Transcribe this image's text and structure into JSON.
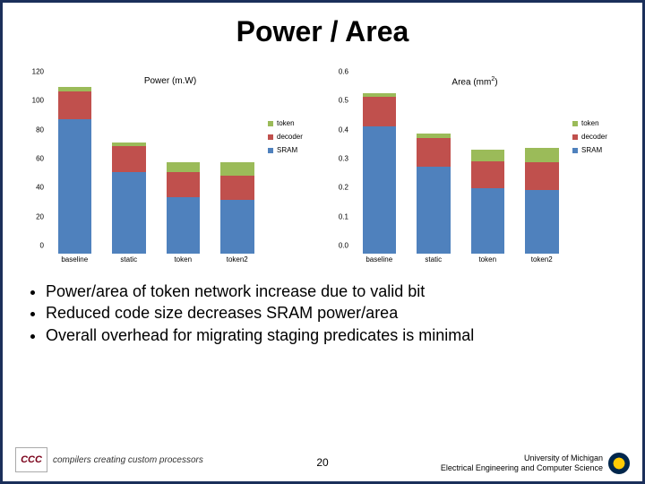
{
  "title": "Power / Area",
  "colors": {
    "sram": "#4f81bd",
    "decoder": "#c0504d",
    "token": "#9bbb59",
    "bg": "#ffffff",
    "border": "#1b2f5a"
  },
  "legend": [
    {
      "key": "token",
      "label": "token"
    },
    {
      "key": "decoder",
      "label": "decoder"
    },
    {
      "key": "sram",
      "label": "SRAM"
    }
  ],
  "power_chart": {
    "type": "stacked-bar",
    "title": "Power (m.W)",
    "ylim": [
      0,
      120
    ],
    "ytick_step": 20,
    "categories": [
      "baseline",
      "static",
      "token",
      "token2"
    ],
    "series": [
      "sram",
      "decoder",
      "token"
    ],
    "values": {
      "baseline": {
        "sram": 93,
        "decoder": 19,
        "token": 3
      },
      "static": {
        "sram": 56,
        "decoder": 18,
        "token": 3
      },
      "token": {
        "sram": 39,
        "decoder": 17,
        "token": 7
      },
      "token2": {
        "sram": 37,
        "decoder": 17,
        "token": 9
      }
    }
  },
  "area_chart": {
    "type": "stacked-bar",
    "title_main": "Area (mm",
    "title_sup": "2",
    "title_close": ")",
    "ylim": [
      0,
      0.6
    ],
    "ytick_step": 0.1,
    "categories": [
      "baseline",
      "static",
      "token",
      "token2"
    ],
    "series": [
      "sram",
      "decoder",
      "token"
    ],
    "values": {
      "baseline": {
        "sram": 0.44,
        "decoder": 0.1,
        "token": 0.015
      },
      "static": {
        "sram": 0.3,
        "decoder": 0.1,
        "token": 0.015
      },
      "token": {
        "sram": 0.225,
        "decoder": 0.095,
        "token": 0.04
      },
      "token2": {
        "sram": 0.22,
        "decoder": 0.095,
        "token": 0.05
      }
    }
  },
  "bullets": [
    "Power/area of token network increase due to valid bit",
    "Reduced code size decreases SRAM power/area",
    "Overall overhead for migrating staging predicates is minimal"
  ],
  "footer": {
    "ccc": "CCC",
    "ccc_tag": "compilers creating custom processors",
    "page": "20",
    "uni1": "University of Michigan",
    "uni2": "Electrical Engineering and Computer Science"
  }
}
